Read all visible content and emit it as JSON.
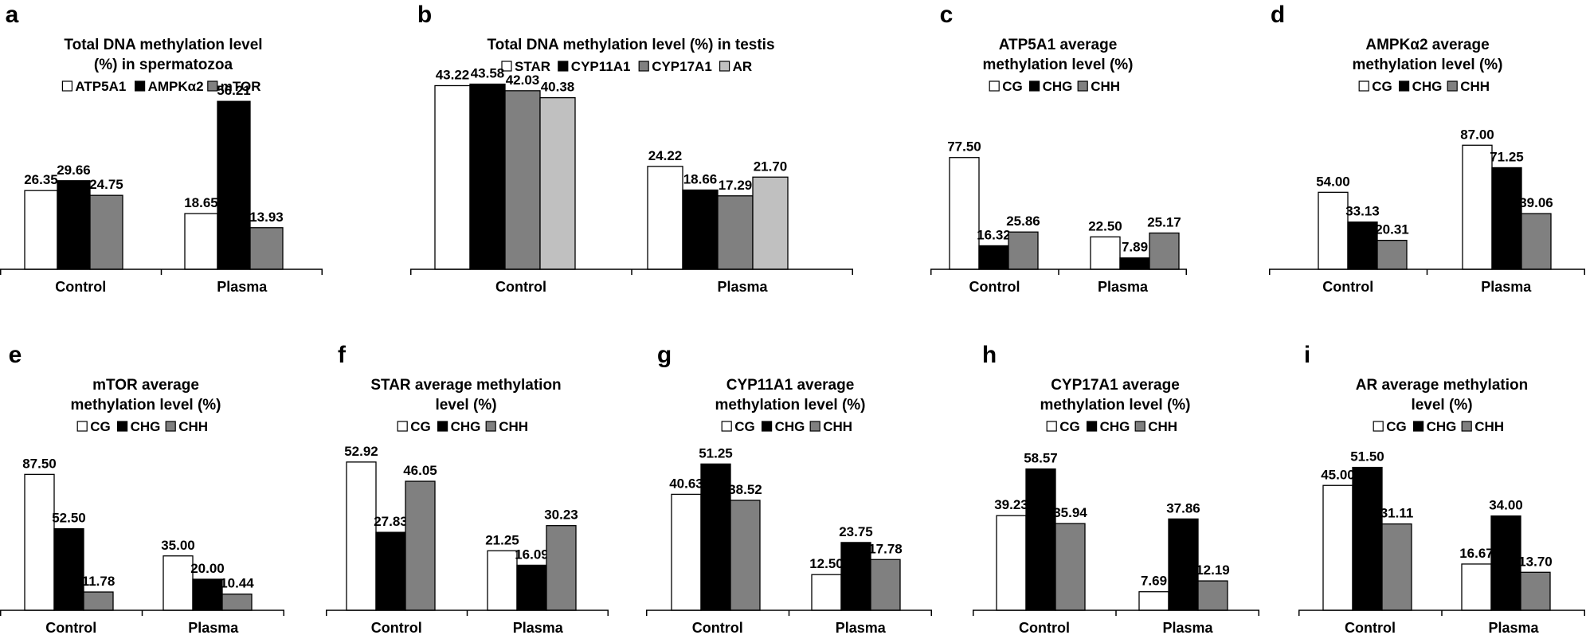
{
  "colors": {
    "white": "#ffffff",
    "black": "#000000",
    "gray": "#808080",
    "lightgray": "#c0c0c0",
    "outline": "#000000"
  },
  "chart_data": [
    {
      "panel": "a",
      "type": "bar",
      "title_lines": [
        "Total DNA methylation level",
        "(%) in spermatozoa"
      ],
      "categories": [
        "Control",
        "Plasma"
      ],
      "series": [
        {
          "name": "ATP5A1",
          "color": "white",
          "values": [
            26.35,
            18.65
          ],
          "labels": [
            "26.35",
            "18.65"
          ]
        },
        {
          "name": "AMPKα2",
          "color": "black",
          "values": [
            29.66,
            56.21
          ],
          "labels": [
            "29.66",
            "56.21"
          ]
        },
        {
          "name": "mTOR",
          "color": "gray",
          "values": [
            24.75,
            13.93
          ],
          "labels": [
            "24.75",
            "13.93"
          ]
        }
      ],
      "ylim": [
        0,
        60
      ]
    },
    {
      "panel": "b",
      "type": "bar",
      "title_lines": [
        "Total DNA methylation level (%) in testis"
      ],
      "categories": [
        "Control",
        "Plasma"
      ],
      "series": [
        {
          "name": "STAR",
          "color": "white",
          "values": [
            43.22,
            24.22
          ],
          "labels": [
            "43.22",
            "24.22"
          ]
        },
        {
          "name": "CYP11A1",
          "color": "black",
          "values": [
            43.58,
            18.66
          ],
          "labels": [
            "43.58",
            "18.66"
          ]
        },
        {
          "name": "CYP17A1",
          "color": "gray",
          "values": [
            42.03,
            17.29
          ],
          "labels": [
            "42.03",
            "17.29"
          ]
        },
        {
          "name": "AR",
          "color": "lightgray",
          "values": [
            40.38,
            21.7
          ],
          "labels": [
            "40.38",
            "21.70"
          ]
        }
      ],
      "ylim": [
        0,
        45
      ]
    },
    {
      "panel": "c",
      "type": "bar",
      "title_lines": [
        "ATP5A1 average",
        "methylation level (%)"
      ],
      "categories": [
        "Control",
        "Plasma"
      ],
      "series": [
        {
          "name": "CG",
          "color": "white",
          "values": [
            77.5,
            22.5
          ],
          "labels": [
            "77.50",
            "22.50"
          ]
        },
        {
          "name": "CHG",
          "color": "black",
          "values": [
            16.32,
            7.89
          ],
          "labels": [
            "16.32",
            "7.89"
          ]
        },
        {
          "name": "CHH",
          "color": "gray",
          "values": [
            25.86,
            25.17
          ],
          "labels": [
            "25.86",
            "25.17"
          ]
        }
      ],
      "ylim": [
        0,
        100
      ]
    },
    {
      "panel": "d",
      "type": "bar",
      "title_lines": [
        "AMPKα2 average",
        "methylation level (%)"
      ],
      "categories": [
        "Control",
        "Plasma"
      ],
      "series": [
        {
          "name": "CG",
          "color": "white",
          "values": [
            54.0,
            87.0
          ],
          "labels": [
            "54.00",
            "87.00"
          ]
        },
        {
          "name": "CHG",
          "color": "black",
          "values": [
            33.13,
            71.25
          ],
          "labels": [
            "33.13",
            "71.25"
          ]
        },
        {
          "name": "CHH",
          "color": "gray",
          "values": [
            20.31,
            39.06
          ],
          "labels": [
            "20.31",
            "39.06"
          ]
        }
      ],
      "ylim": [
        0,
        100
      ]
    },
    {
      "panel": "e",
      "type": "bar",
      "title_lines": [
        "mTOR average",
        "methylation level (%)"
      ],
      "categories": [
        "Control",
        "Plasma"
      ],
      "series": [
        {
          "name": "CG",
          "color": "white",
          "values": [
            87.5,
            35.0
          ],
          "labels": [
            "87.50",
            "35.00"
          ]
        },
        {
          "name": "CHG",
          "color": "black",
          "values": [
            52.5,
            20.0
          ],
          "labels": [
            "52.50",
            "20.00"
          ]
        },
        {
          "name": "CHH",
          "color": "gray",
          "values": [
            11.78,
            10.44
          ],
          "labels": [
            "11.78",
            "10.44"
          ]
        }
      ],
      "ylim": [
        0,
        100
      ]
    },
    {
      "panel": "f",
      "type": "bar",
      "title_lines": [
        "STAR average methylation",
        "level (%)"
      ],
      "categories": [
        "Control",
        "Plasma"
      ],
      "series": [
        {
          "name": "CG",
          "color": "white",
          "values": [
            52.92,
            21.25
          ],
          "labels": [
            "52.92",
            "21.25"
          ]
        },
        {
          "name": "CHG",
          "color": "black",
          "values": [
            27.83,
            16.09
          ],
          "labels": [
            "27.83",
            "16.09"
          ]
        },
        {
          "name": "CHH",
          "color": "gray",
          "values": [
            46.05,
            30.23
          ],
          "labels": [
            "46.05",
            "30.23"
          ]
        }
      ],
      "ylim": [
        0,
        60
      ]
    },
    {
      "panel": "g",
      "type": "bar",
      "title_lines": [
        "CYP11A1 average",
        "methylation level (%)"
      ],
      "categories": [
        "Control",
        "Plasma"
      ],
      "series": [
        {
          "name": "CG",
          "color": "white",
          "values": [
            40.63,
            12.5
          ],
          "labels": [
            "40.63",
            "12.50"
          ]
        },
        {
          "name": "CHG",
          "color": "black",
          "values": [
            51.25,
            23.75
          ],
          "labels": [
            "51.25",
            "23.75"
          ]
        },
        {
          "name": "CHH",
          "color": "gray",
          "values": [
            38.52,
            17.78
          ],
          "labels": [
            "38.52",
            "17.78"
          ]
        }
      ],
      "ylim": [
        0,
        60
      ]
    },
    {
      "panel": "h",
      "type": "bar",
      "title_lines": [
        "CYP17A1 average",
        "methylation level (%)"
      ],
      "categories": [
        "Control",
        "Plasma"
      ],
      "series": [
        {
          "name": "CG",
          "color": "white",
          "values": [
            39.23,
            7.69
          ],
          "labels": [
            "39.23",
            "7.69"
          ]
        },
        {
          "name": "CHG",
          "color": "black",
          "values": [
            58.57,
            37.86
          ],
          "labels": [
            "58.57",
            "37.86"
          ]
        },
        {
          "name": "CHH",
          "color": "gray",
          "values": [
            35.94,
            12.19
          ],
          "labels": [
            "35.94",
            "12.19"
          ]
        }
      ],
      "ylim": [
        0,
        70
      ]
    },
    {
      "panel": "i",
      "type": "bar",
      "title_lines": [
        "AR average methylation",
        "level (%)"
      ],
      "categories": [
        "Control",
        "Plasma"
      ],
      "series": [
        {
          "name": "CG",
          "color": "white",
          "values": [
            45.0,
            16.67
          ],
          "labels": [
            "45.00",
            "16.67"
          ]
        },
        {
          "name": "CHG",
          "color": "black",
          "values": [
            51.5,
            34.0
          ],
          "labels": [
            "51.50",
            "34.00"
          ]
        },
        {
          "name": "CHH",
          "color": "gray",
          "values": [
            31.11,
            13.7
          ],
          "labels": [
            "31.11",
            "13.70"
          ]
        }
      ],
      "ylim": [
        0,
        60
      ]
    }
  ]
}
